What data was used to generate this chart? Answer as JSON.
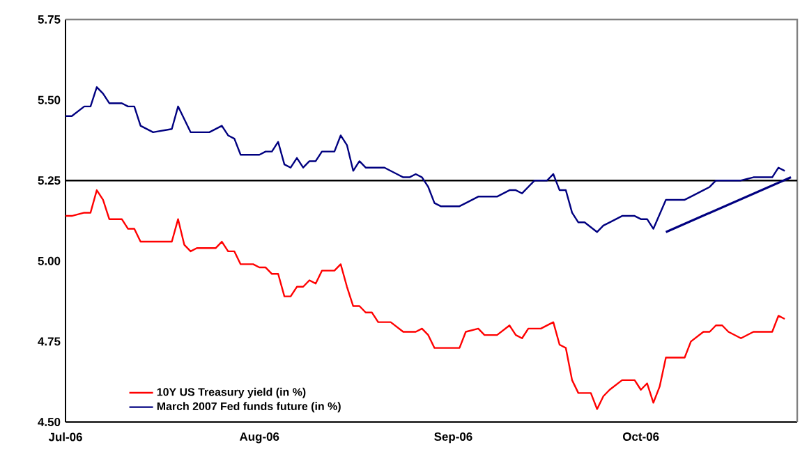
{
  "chart_data": {
    "type": "line",
    "xlim": [
      "2006-07-01",
      "2006-10-26"
    ],
    "ylim": [
      4.5,
      5.75
    ],
    "xticks": [
      {
        "value": "2006-07-01",
        "label": "Jul-06"
      },
      {
        "value": "2006-08-01",
        "label": "Aug-06"
      },
      {
        "value": "2006-09-01",
        "label": "Sep-06"
      },
      {
        "value": "2006-10-01",
        "label": "Oct-06"
      }
    ],
    "yticks": [
      {
        "value": 4.5,
        "label": "4.50"
      },
      {
        "value": 4.75,
        "label": "4.75"
      },
      {
        "value": 5.0,
        "label": "5.00"
      },
      {
        "value": 5.25,
        "label": "5.25"
      },
      {
        "value": 5.5,
        "label": "5.50"
      },
      {
        "value": 5.75,
        "label": "5.75"
      }
    ],
    "grid": false,
    "legend": "bottom left",
    "line_style": "solid",
    "marker": "none",
    "ref_lines": [
      {
        "axis": "y",
        "value": 5.25,
        "color": "#000000"
      }
    ],
    "series": [
      {
        "name": "10Y US Treasury yield (in %)",
        "color": "#ff0000",
        "x": [
          "2006-07-01",
          "2006-07-02",
          "2006-07-04",
          "2006-07-05",
          "2006-07-06",
          "2006-07-07",
          "2006-07-08",
          "2006-07-10",
          "2006-07-11",
          "2006-07-12",
          "2006-07-13",
          "2006-07-18",
          "2006-07-19",
          "2006-07-20",
          "2006-07-21",
          "2006-07-22",
          "2006-07-25",
          "2006-07-26",
          "2006-07-27",
          "2006-07-28",
          "2006-07-29",
          "2006-07-31",
          "2006-08-01",
          "2006-08-02",
          "2006-08-03",
          "2006-08-04",
          "2006-08-05",
          "2006-08-06",
          "2006-08-07",
          "2006-08-08",
          "2006-08-09",
          "2006-08-10",
          "2006-08-11",
          "2006-08-13",
          "2006-08-14",
          "2006-08-15",
          "2006-08-16",
          "2006-08-17",
          "2006-08-18",
          "2006-08-19",
          "2006-08-20",
          "2006-08-22",
          "2006-08-24",
          "2006-08-26",
          "2006-08-27",
          "2006-08-28",
          "2006-08-29",
          "2006-09-02",
          "2006-09-03",
          "2006-09-05",
          "2006-09-06",
          "2006-09-08",
          "2006-09-10",
          "2006-09-11",
          "2006-09-12",
          "2006-09-13",
          "2006-09-14",
          "2006-09-15",
          "2006-09-17",
          "2006-09-18",
          "2006-09-19",
          "2006-09-20",
          "2006-09-21",
          "2006-09-23",
          "2006-09-24",
          "2006-09-25",
          "2006-09-26",
          "2006-09-28",
          "2006-09-30",
          "2006-10-01",
          "2006-10-02",
          "2006-10-03",
          "2006-10-04",
          "2006-10-05",
          "2006-10-08",
          "2006-10-09",
          "2006-10-11",
          "2006-10-12",
          "2006-10-13",
          "2006-10-14",
          "2006-10-15",
          "2006-10-17",
          "2006-10-19",
          "2006-10-22",
          "2006-10-23",
          "2006-10-24"
        ],
        "values": [
          5.14,
          5.14,
          5.15,
          5.15,
          5.22,
          5.19,
          5.13,
          5.13,
          5.1,
          5.1,
          5.06,
          5.06,
          5.13,
          5.05,
          5.03,
          5.04,
          5.04,
          5.06,
          5.03,
          5.03,
          4.99,
          4.99,
          4.98,
          4.98,
          4.96,
          4.96,
          4.89,
          4.89,
          4.92,
          4.92,
          4.94,
          4.93,
          4.97,
          4.97,
          4.99,
          4.92,
          4.86,
          4.86,
          4.84,
          4.84,
          4.81,
          4.81,
          4.78,
          4.78,
          4.79,
          4.77,
          4.73,
          4.73,
          4.78,
          4.79,
          4.77,
          4.77,
          4.8,
          4.77,
          4.76,
          4.79,
          4.79,
          4.79,
          4.81,
          4.74,
          4.73,
          4.63,
          4.59,
          4.59,
          4.54,
          4.58,
          4.6,
          4.63,
          4.63,
          4.6,
          4.62,
          4.56,
          4.61,
          4.7,
          4.7,
          4.75,
          4.78,
          4.78,
          4.8,
          4.8,
          4.78,
          4.76,
          4.78,
          4.78,
          4.83,
          4.82
        ]
      },
      {
        "name": "March 2007 Fed funds future (in %)",
        "color": "#000080",
        "x": [
          "2006-07-01",
          "2006-07-02",
          "2006-07-04",
          "2006-07-05",
          "2006-07-06",
          "2006-07-07",
          "2006-07-08",
          "2006-07-10",
          "2006-07-11",
          "2006-07-12",
          "2006-07-13",
          "2006-07-15",
          "2006-07-18",
          "2006-07-19",
          "2006-07-21",
          "2006-07-24",
          "2006-07-26",
          "2006-07-27",
          "2006-07-28",
          "2006-07-29",
          "2006-08-01",
          "2006-08-02",
          "2006-08-03",
          "2006-08-04",
          "2006-08-05",
          "2006-08-06",
          "2006-08-07",
          "2006-08-08",
          "2006-08-09",
          "2006-08-10",
          "2006-08-11",
          "2006-08-13",
          "2006-08-14",
          "2006-08-15",
          "2006-08-16",
          "2006-08-17",
          "2006-08-18",
          "2006-08-20",
          "2006-08-21",
          "2006-08-23",
          "2006-08-24",
          "2006-08-25",
          "2006-08-26",
          "2006-08-27",
          "2006-08-28",
          "2006-08-29",
          "2006-08-30",
          "2006-09-02",
          "2006-09-03",
          "2006-09-05",
          "2006-09-06",
          "2006-09-08",
          "2006-09-10",
          "2006-09-11",
          "2006-09-12",
          "2006-09-13",
          "2006-09-14",
          "2006-09-16",
          "2006-09-17",
          "2006-09-18",
          "2006-09-19",
          "2006-09-20",
          "2006-09-21",
          "2006-09-22",
          "2006-09-24",
          "2006-09-25",
          "2006-09-26",
          "2006-09-28",
          "2006-09-30",
          "2006-10-01",
          "2006-10-02",
          "2006-10-03",
          "2006-10-05",
          "2006-10-08",
          "2006-10-09",
          "2006-10-11",
          "2006-10-12",
          "2006-10-13",
          "2006-10-17",
          "2006-10-19",
          "2006-10-22",
          "2006-10-23",
          "2006-10-24"
        ],
        "values": [
          5.45,
          5.45,
          5.48,
          5.48,
          5.54,
          5.52,
          5.49,
          5.49,
          5.48,
          5.48,
          5.42,
          5.4,
          5.41,
          5.48,
          5.4,
          5.4,
          5.42,
          5.39,
          5.38,
          5.33,
          5.33,
          5.34,
          5.34,
          5.37,
          5.3,
          5.29,
          5.32,
          5.29,
          5.31,
          5.31,
          5.34,
          5.34,
          5.39,
          5.36,
          5.28,
          5.31,
          5.29,
          5.29,
          5.29,
          5.27,
          5.26,
          5.26,
          5.27,
          5.26,
          5.23,
          5.18,
          5.17,
          5.17,
          5.18,
          5.2,
          5.2,
          5.2,
          5.22,
          5.22,
          5.21,
          5.23,
          5.25,
          5.25,
          5.27,
          5.22,
          5.22,
          5.15,
          5.12,
          5.12,
          5.09,
          5.11,
          5.12,
          5.14,
          5.14,
          5.13,
          5.13,
          5.1,
          5.19,
          5.19,
          5.2,
          5.22,
          5.23,
          5.25,
          5.25,
          5.26,
          5.26,
          5.29,
          5.28
        ]
      },
      {
        "type": "line",
        "color": "#000080",
        "x": [
          "2006-10-05",
          "2006-10-25"
        ],
        "values": [
          5.09,
          5.26
        ]
      }
    ]
  }
}
